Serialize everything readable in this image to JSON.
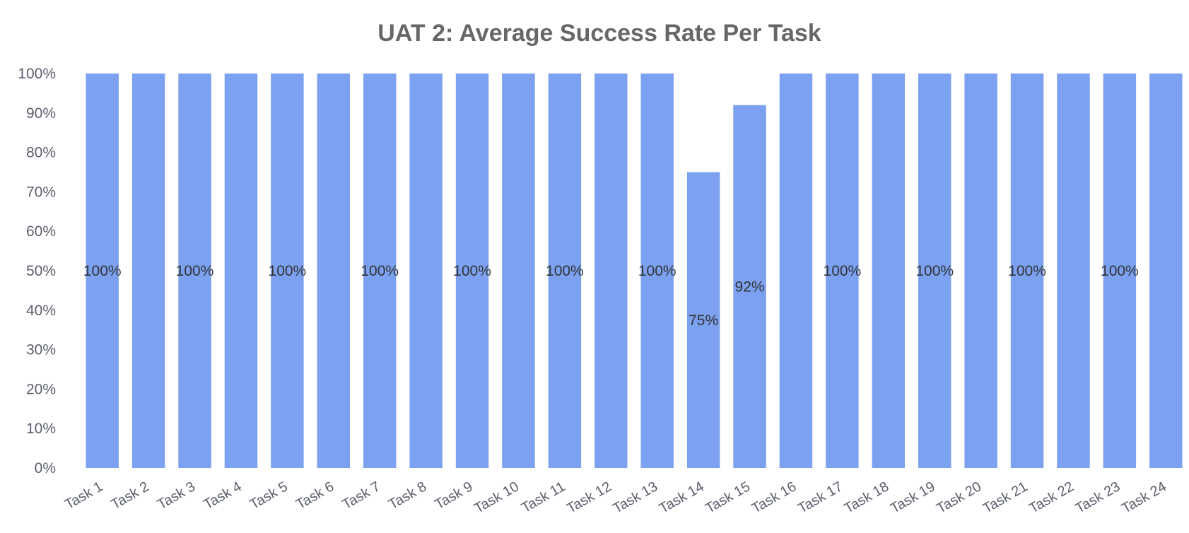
{
  "chart_data": {
    "type": "bar",
    "title": "UAT 2: Average Success Rate Per Task",
    "xlabel": "",
    "ylabel": "",
    "ylim": [
      0,
      100
    ],
    "y_ticks": [
      "0%",
      "10%",
      "20%",
      "30%",
      "40%",
      "50%",
      "60%",
      "70%",
      "80%",
      "90%",
      "100%"
    ],
    "grid": false,
    "legend": "none",
    "bar_color": "#7ba1f0",
    "categories": [
      "Task 1",
      "Task 2",
      "Task 3",
      "Task 4",
      "Task 5",
      "Task 6",
      "Task 7",
      "Task 8",
      "Task 9",
      "Task 10",
      "Task 11",
      "Task 12",
      "Task 13",
      "Task 14",
      "Task 15",
      "Task 16",
      "Task 17",
      "Task 18",
      "Task 19",
      "Task 20",
      "Task 21",
      "Task 22",
      "Task 23",
      "Task 24"
    ],
    "values": [
      100,
      100,
      100,
      100,
      100,
      100,
      100,
      100,
      100,
      100,
      100,
      100,
      100,
      75,
      92,
      100,
      100,
      100,
      100,
      100,
      100,
      100,
      100,
      100
    ],
    "data_labels": [
      "100%",
      "",
      "100%",
      "",
      "100%",
      "",
      "100%",
      "",
      "100%",
      "",
      "100%",
      "",
      "100%",
      "75%",
      "92%",
      "",
      "100%",
      "",
      "100%",
      "",
      "100%",
      "",
      "100%",
      ""
    ]
  }
}
